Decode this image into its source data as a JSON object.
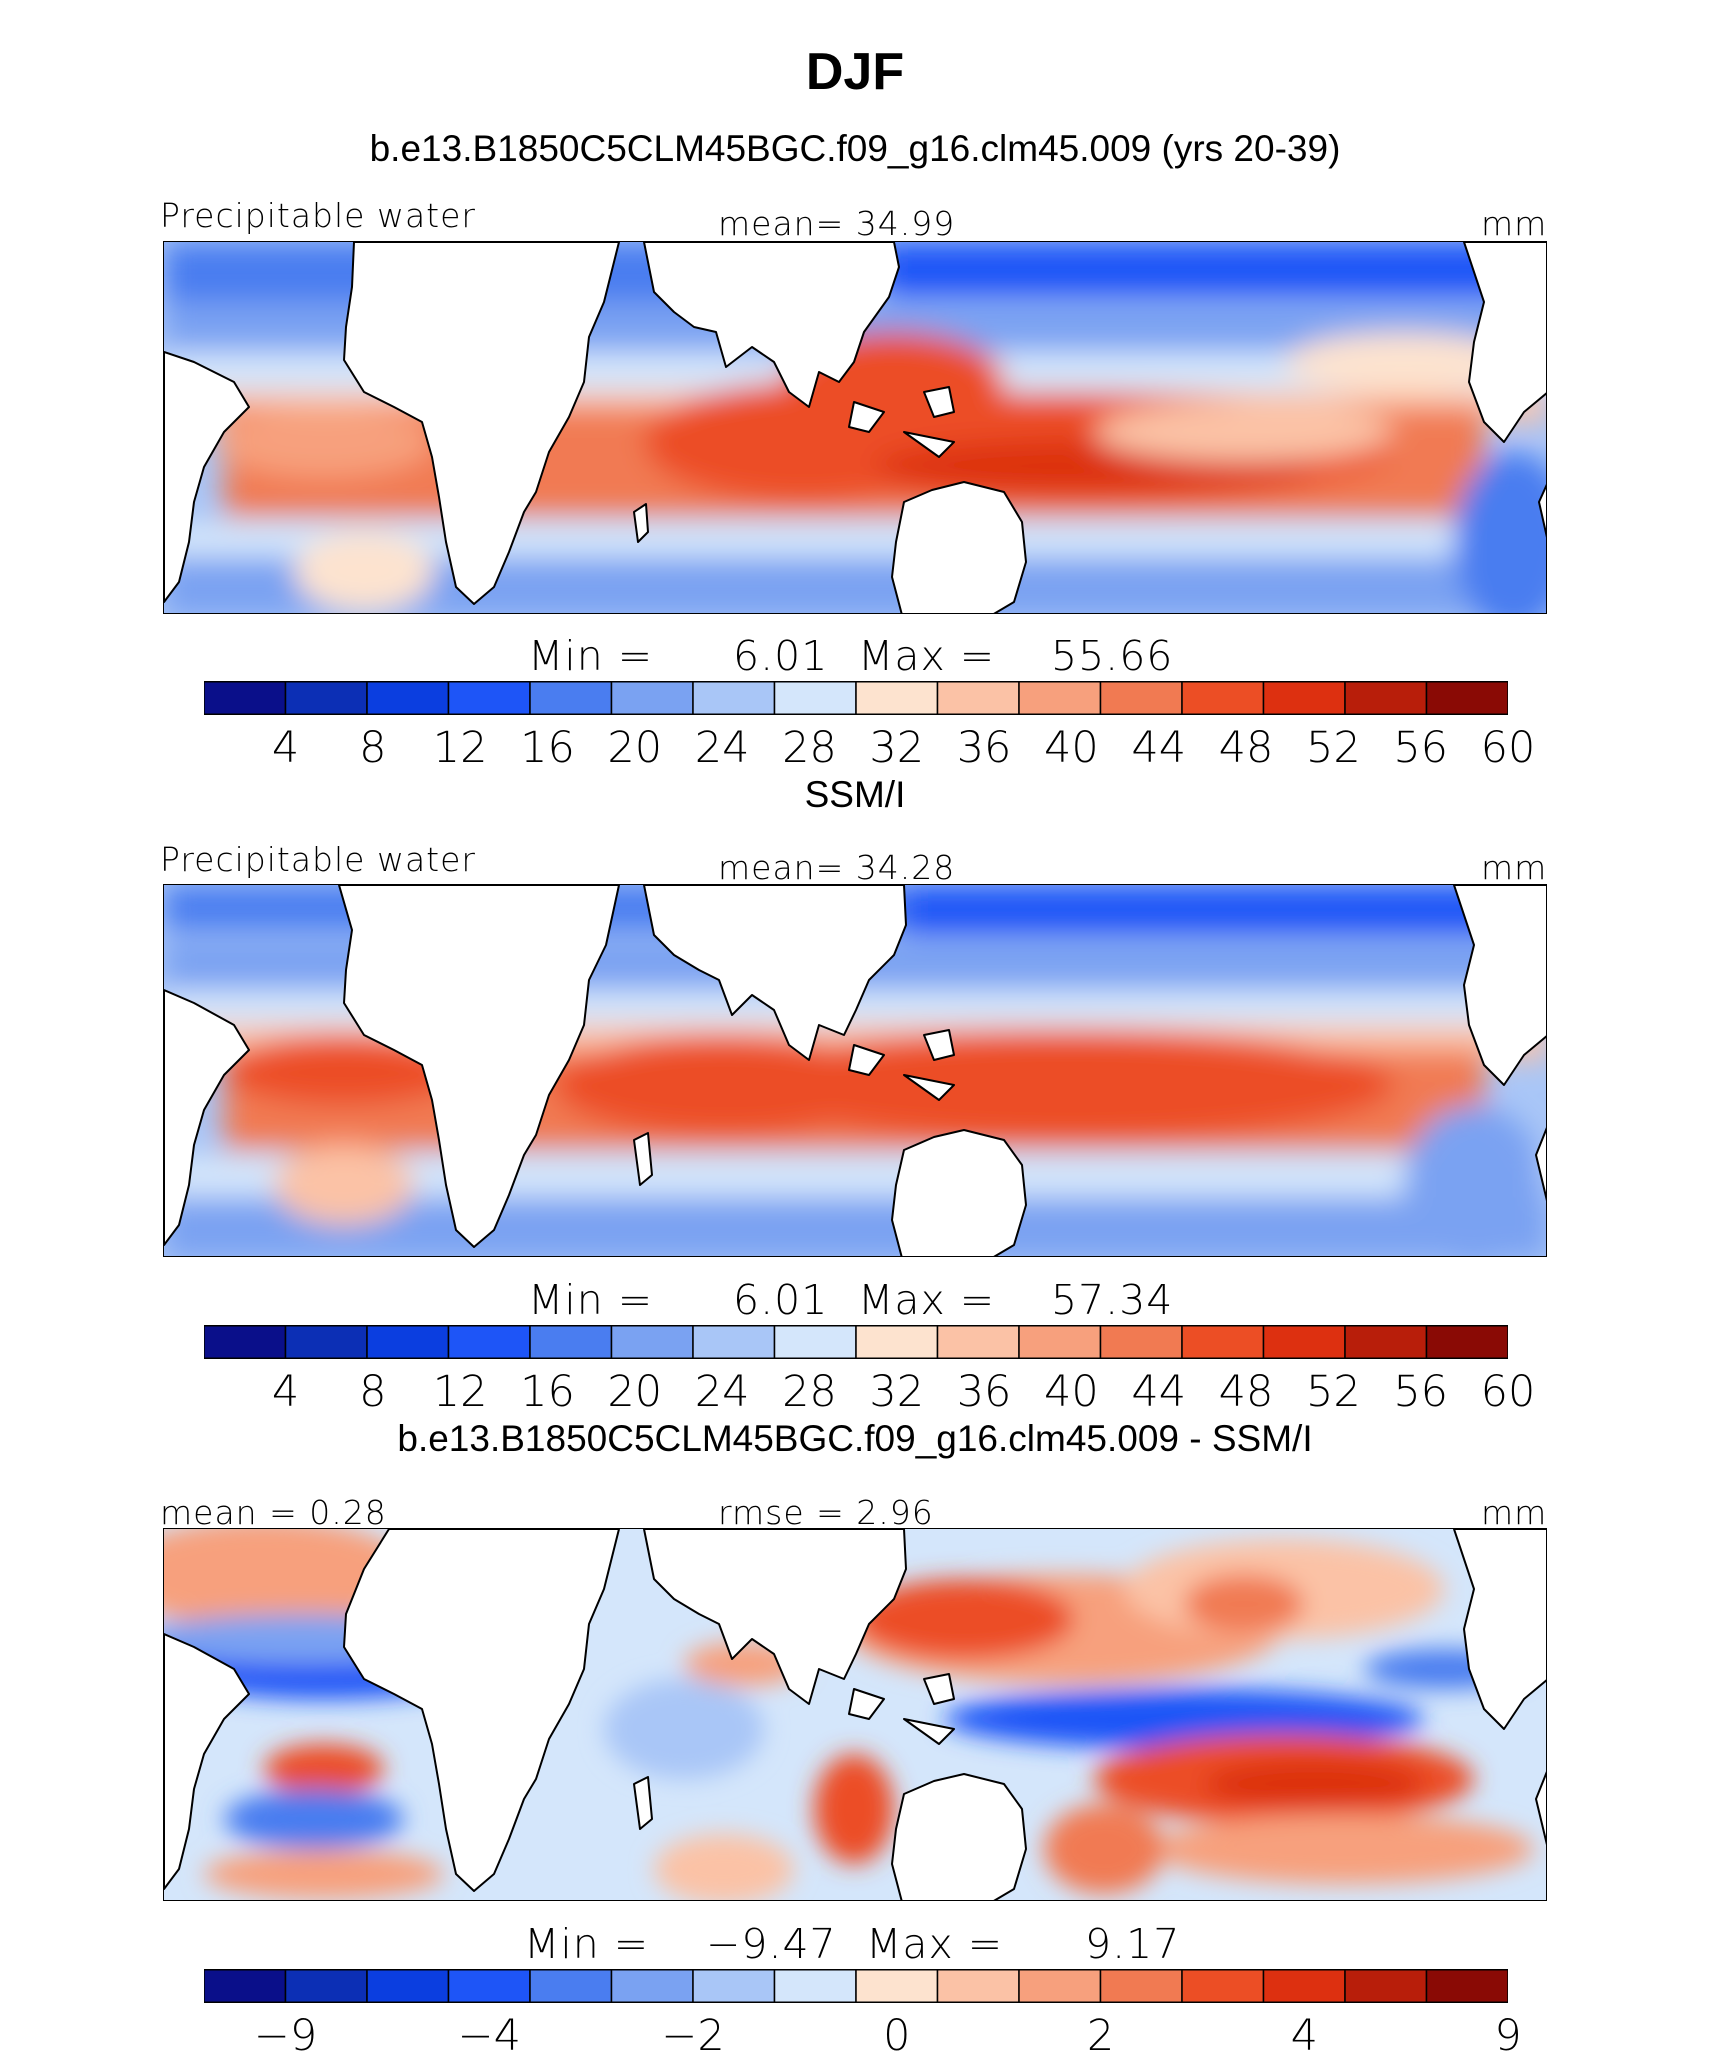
{
  "title": "DJF",
  "panels": [
    {
      "id": "model",
      "title": "b.e13.B1850C5CLM45BGC.f09_g16.clm45.009 (yrs 20-39)",
      "left_label": "Precipitable water",
      "center_label": "mean=  34.99",
      "right_label": "mm",
      "min_label": "Min =",
      "min_value": "6.01",
      "max_label": "Max =",
      "max_value": "55.66",
      "colorbar": {
        "colors": [
          "#0a0f8a",
          "#0c2fb5",
          "#0b3ee0",
          "#1e55f7",
          "#4a7df0",
          "#7aa2f2",
          "#a9c6f7",
          "#d4e6fb",
          "#fde3cf",
          "#fbc2a6",
          "#f7a07d",
          "#f17a52",
          "#ec4e25",
          "#dd3010",
          "#b81e0a",
          "#8a0a05"
        ],
        "ticks": [
          "4",
          "8",
          "12",
          "16",
          "20",
          "24",
          "28",
          "32",
          "36",
          "40",
          "44",
          "48",
          "52",
          "56",
          "60"
        ]
      }
    },
    {
      "id": "obs",
      "title": "SSM/I",
      "left_label": "Precipitable water",
      "center_label": "mean=  34.28",
      "right_label": "mm",
      "min_label": "Min =",
      "min_value": "6.01",
      "max_label": "Max =",
      "max_value": "57.34",
      "colorbar": {
        "colors": [
          "#0a0f8a",
          "#0c2fb5",
          "#0b3ee0",
          "#1e55f7",
          "#4a7df0",
          "#7aa2f2",
          "#a9c6f7",
          "#d4e6fb",
          "#fde3cf",
          "#fbc2a6",
          "#f7a07d",
          "#f17a52",
          "#ec4e25",
          "#dd3010",
          "#b81e0a",
          "#8a0a05"
        ],
        "ticks": [
          "4",
          "8",
          "12",
          "16",
          "20",
          "24",
          "28",
          "32",
          "36",
          "40",
          "44",
          "48",
          "52",
          "56",
          "60"
        ]
      }
    },
    {
      "id": "diff",
      "title": "b.e13.B1850C5CLM45BGC.f09_g16.clm45.009 - SSM/I",
      "left_label": "mean =   0.28",
      "center_label": "rmse =   2.96",
      "right_label": "mm",
      "min_label": "Min =",
      "min_value": "−9.47",
      "max_label": "Max =",
      "max_value": "9.17",
      "colorbar": {
        "colors": [
          "#0a0f8a",
          "#0c2fb5",
          "#0b3ee0",
          "#1e55f7",
          "#4a7df0",
          "#7aa2f2",
          "#a9c6f7",
          "#d4e6fb",
          "#fde3cf",
          "#fbc2a6",
          "#f7a07d",
          "#f17a52",
          "#ec4e25",
          "#dd3010",
          "#b81e0a",
          "#8a0a05"
        ],
        "ticks": [
          "−9",
          "",
          "−4",
          "",
          "−2",
          "",
          "0",
          "",
          "2",
          "",
          "4",
          "",
          "9"
        ]
      }
    }
  ]
}
